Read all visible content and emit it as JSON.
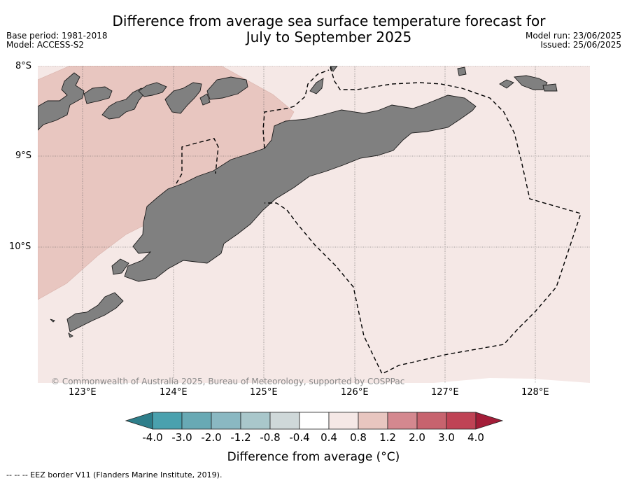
{
  "title_line1": "Difference from average sea surface temperature forecast for",
  "title_line2": "July to September 2025",
  "meta_left": {
    "base_period": "Base period: 1981-2018",
    "model": "Model: ACCESS-S2"
  },
  "meta_right": {
    "model_run": "Model run: 23/06/2025",
    "issued": "Issued: 25/06/2025"
  },
  "lat_labels": [
    "8°S",
    "9°S",
    "10°S"
  ],
  "lon_labels": [
    "123°E",
    "124°E",
    "125°E",
    "126°E",
    "127°E",
    "128°E"
  ],
  "copyright": "© Commonwealth of Australia 2025, Bureau of Meteorology, supported by COSPPac",
  "colorbar": {
    "ticks": [
      "-4.0",
      "-3.0",
      "-2.0",
      "-1.2",
      "-0.8",
      "-0.4",
      "0.4",
      "0.8",
      "1.2",
      "2.0",
      "3.0",
      "4.0"
    ],
    "colors": [
      "#2e7e8a",
      "#4aa1ae",
      "#68a9b4",
      "#8ab8c2",
      "#a9c7cb",
      "#cfd8d9",
      "#ffffff",
      "#f5e8e6",
      "#e8c6c0",
      "#d4888f",
      "#c7636e",
      "#bf4355",
      "#a31d38"
    ],
    "label": "Difference from average (°C)"
  },
  "legend_footnote": "--  --  -- EEZ border V11 (Flanders Marine Institute, 2019).",
  "map_colors": {
    "anomaly_0_4_to_0_8": "#f5e8e6",
    "anomaly_0_8_to_1_2": "#e8c6c0",
    "land": "#808080"
  }
}
